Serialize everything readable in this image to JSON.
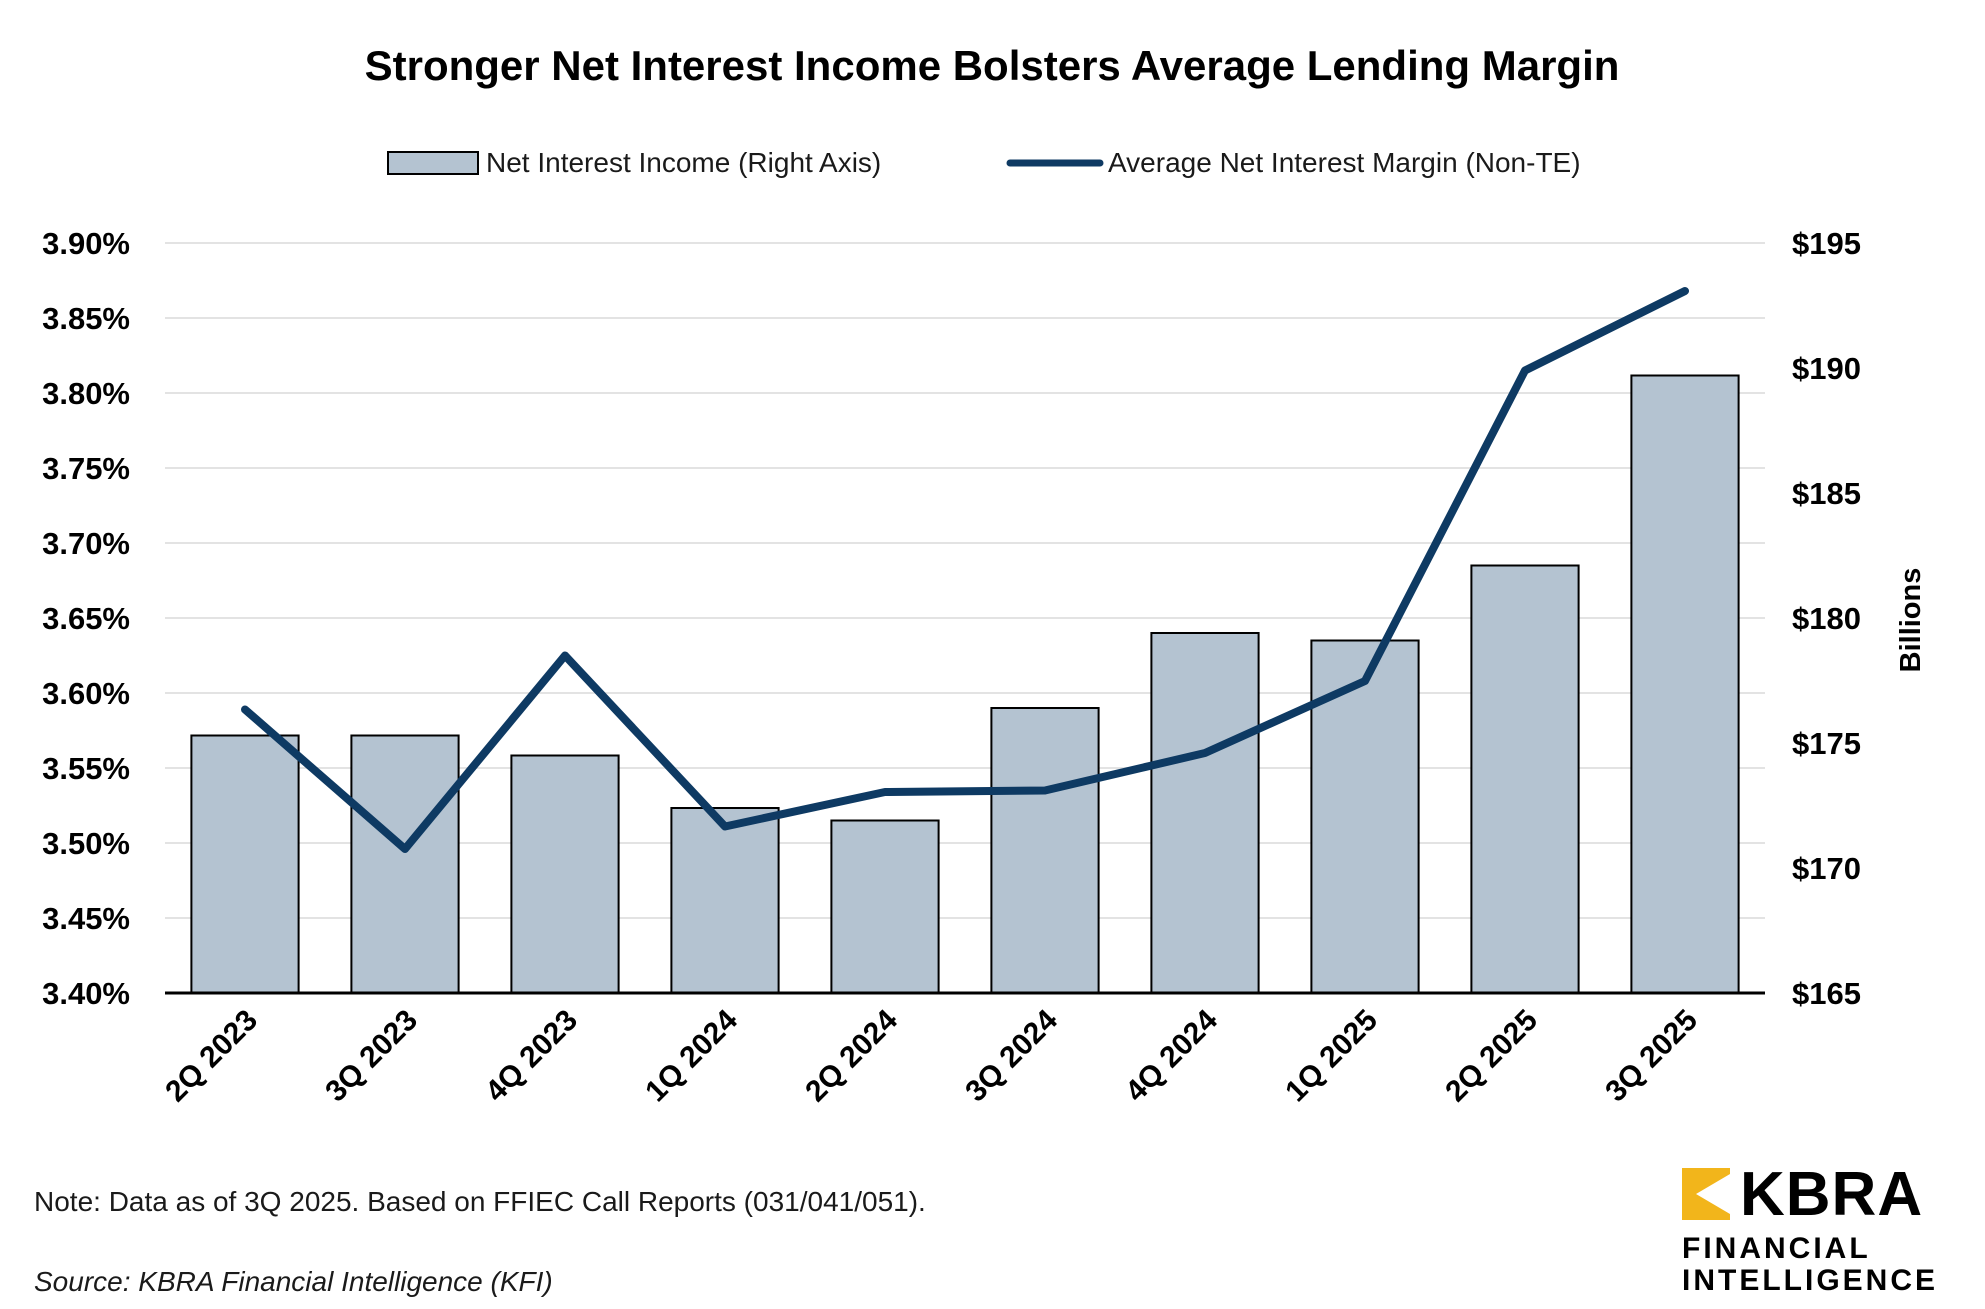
{
  "chart_data": {
    "type": "bar+line",
    "title": "Stronger Net Interest Income Bolsters Average Lending Margin",
    "categories": [
      "2Q 2023",
      "3Q 2023",
      "4Q 2023",
      "1Q 2024",
      "2Q 2024",
      "3Q 2024",
      "4Q 2024",
      "1Q 2025",
      "2Q 2025",
      "3Q 2025"
    ],
    "bar_series": {
      "name": "Net Interest Income (Right Axis)",
      "axis": "right",
      "unit": "Billions",
      "values": [
        175.3,
        175.3,
        174.5,
        172.4,
        171.9,
        176.4,
        179.4,
        179.1,
        182.1,
        189.7
      ],
      "color": "#b4c3d1"
    },
    "line_series": {
      "name": "Average Net Interest Margin (Non-TE)",
      "axis": "left",
      "values": [
        3.589,
        3.496,
        3.625,
        3.511,
        3.534,
        3.535,
        3.56,
        3.608,
        3.815,
        3.868
      ],
      "color": "#0e3a63"
    },
    "left_axis": {
      "ylim": [
        3.4,
        3.9
      ],
      "ticks": [
        "3.40%",
        "3.45%",
        "3.50%",
        "3.55%",
        "3.60%",
        "3.65%",
        "3.70%",
        "3.75%",
        "3.80%",
        "3.85%",
        "3.90%"
      ]
    },
    "right_axis": {
      "ylim": [
        165,
        195
      ],
      "ticks": [
        "$165",
        "$170",
        "$175",
        "$180",
        "$185",
        "$190",
        "$195"
      ],
      "label": "Billions"
    },
    "legend_position": "top-center"
  },
  "footer": {
    "note": "Note: Data as of 3Q 2025. Based on FFIEC Call Reports (031/041/051).",
    "source": "Source: KBRA Financial Intelligence (KFI)"
  },
  "logo": {
    "brand": "KBRA",
    "line1": "FINANCIAL",
    "line2": "INTELLIGENCE",
    "accent_color": "#f2b51b"
  }
}
